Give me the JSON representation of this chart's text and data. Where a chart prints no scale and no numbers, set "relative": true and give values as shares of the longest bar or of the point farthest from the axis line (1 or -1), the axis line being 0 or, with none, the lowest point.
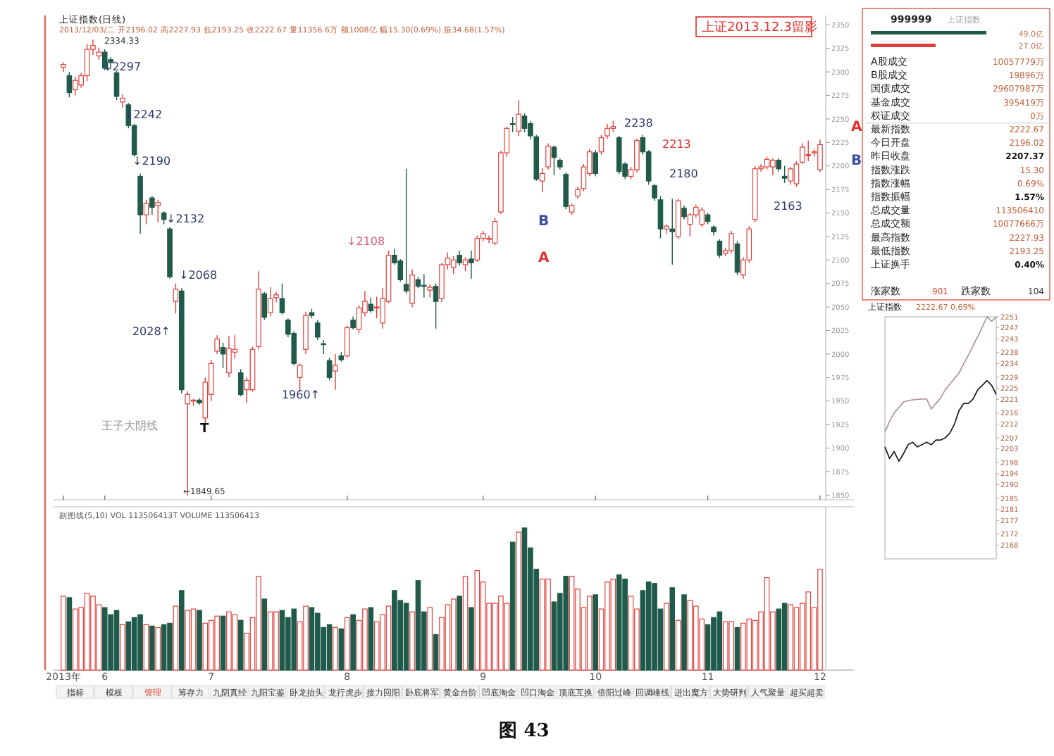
{
  "chart_data": [
    {
      "type": "candlestick",
      "title": "上证指数(日线)",
      "subtitle": "2013/12/03/二 开2196.02 高2227.93 低2193.25 收2222.67 量11356.6万 额1008亿 幅15.30(0.69%) 振34.68(1.57%)",
      "tick_labels": "y",
      "categories": [
        null,
        null,
        null,
        null,
        null,
        null,
        null,
        null,
        null,
        null,
        null,
        null,
        null,
        null,
        null,
        null,
        null,
        null,
        null,
        null,
        null,
        null,
        null,
        null,
        null,
        null,
        null,
        null,
        null,
        null,
        null,
        null,
        null,
        null,
        null,
        null,
        null,
        null,
        null,
        null,
        null,
        null,
        null,
        null,
        null,
        null,
        null,
        null,
        null,
        null,
        null,
        null,
        null,
        null,
        null,
        null,
        null,
        null,
        null,
        null,
        null,
        null,
        null,
        null,
        null,
        null,
        null,
        null,
        null,
        null,
        null,
        null,
        null,
        null,
        null,
        null,
        null,
        null,
        null,
        null,
        null,
        null,
        null,
        null,
        null,
        null,
        null,
        null,
        null,
        null,
        null,
        null,
        null,
        null,
        null,
        null,
        null,
        null,
        null,
        null,
        null,
        null,
        null,
        null,
        null,
        null,
        null,
        null,
        null,
        null,
        null,
        null,
        null,
        null,
        null,
        null,
        null,
        null,
        null,
        null,
        null,
        null,
        null,
        null,
        null,
        null,
        null,
        null,
        null
      ],
      "ylim": [
        1845,
        2360
      ],
      "yticks": [
        1850,
        1875,
        1900,
        1925,
        1950,
        1975,
        2000,
        2025,
        2050,
        2075,
        2100,
        2125,
        2150,
        2175,
        2200,
        2225,
        2250,
        2275,
        2300,
        2325,
        2350
      ],
      "ohlc": [
        [
          2305,
          2310,
          2300,
          2308
        ],
        [
          2296,
          2300,
          2273,
          2278
        ],
        [
          2281,
          2295,
          2275,
          2291
        ],
        [
          2286,
          2299,
          2283,
          2296
        ],
        [
          2296,
          2330,
          2290,
          2324
        ],
        [
          2324,
          2334.33,
          2318,
          2328
        ],
        [
          2317,
          2326,
          2313,
          2321
        ],
        [
          2321,
          2324,
          2302,
          2304
        ],
        [
          2313,
          2316,
          2303,
          2310
        ],
        [
          2299,
          2301,
          2270,
          2274
        ],
        [
          2268,
          2276,
          2262,
          2272
        ],
        [
          2265,
          2267,
          2240,
          2243
        ],
        [
          2243,
          2245,
          2210,
          2212
        ],
        [
          2189,
          2192,
          2128,
          2148
        ],
        [
          2148,
          2164,
          2138,
          2160
        ],
        [
          2166,
          2168,
          2148,
          2156
        ],
        [
          2158,
          2164,
          2140,
          2161
        ],
        [
          2150,
          2152,
          2138,
          2143
        ],
        [
          2133,
          2135,
          2080,
          2082
        ],
        [
          2056,
          2075,
          2043,
          2069
        ],
        [
          2067,
          2070,
          1958,
          1962
        ],
        [
          1947,
          1960,
          1849.65,
          1957
        ],
        [
          1950,
          1952,
          1945,
          1951
        ],
        [
          1951,
          1953,
          1946,
          1948
        ],
        [
          1932,
          1975,
          1925,
          1970
        ],
        [
          1957,
          1994,
          1950,
          1990
        ],
        [
          2003,
          2020,
          2000,
          2016
        ],
        [
          2007,
          2012,
          1985,
          2000
        ],
        [
          1980,
          2019,
          1975,
          2006
        ],
        [
          2002,
          2020,
          1995,
          2005
        ],
        [
          1980,
          1984,
          1955,
          1957
        ],
        [
          1962,
          1975,
          1948,
          1972
        ],
        [
          1962,
          2008,
          1960,
          2005
        ],
        [
          2008,
          2088,
          2005,
          2069
        ],
        [
          2064,
          2066,
          2036,
          2039
        ],
        [
          2044,
          2071,
          2040,
          2059
        ],
        [
          2060,
          2066,
          2055,
          2063
        ],
        [
          2059,
          2075,
          2042,
          2044
        ],
        [
          2036,
          2038,
          2018,
          2021
        ],
        [
          2022,
          2024,
          1988,
          1990
        ],
        [
          1975,
          1990,
          1960,
          1988
        ],
        [
          2005,
          2045,
          2000,
          2041
        ],
        [
          2044,
          2048,
          2038,
          2041
        ],
        [
          2033,
          2036,
          2015,
          2018
        ],
        [
          2011,
          2015,
          2000,
          2010
        ],
        [
          1993,
          1996,
          1972,
          1975
        ],
        [
          1982,
          2000,
          1962,
          1988
        ],
        [
          1998,
          2002,
          1992,
          1994
        ],
        [
          1998,
          2030,
          1996,
          2028
        ],
        [
          2036,
          2040,
          2026,
          2028
        ],
        [
          2026,
          2052,
          2022,
          2049
        ],
        [
          2044,
          2067,
          2040,
          2056
        ],
        [
          2053,
          2060,
          2044,
          2046
        ],
        [
          2050,
          2061,
          2038,
          2050
        ],
        [
          2033,
          2070,
          2027,
          2059
        ],
        [
          2056,
          2110,
          2054,
          2105
        ],
        [
          2105,
          2112,
          2095,
          2097
        ],
        [
          2099,
          2101,
          2077,
          2079
        ],
        [
          2074,
          2197,
          2064,
          2067
        ],
        [
          2054,
          2090,
          2050,
          2084
        ],
        [
          2079,
          2082,
          2070,
          2072
        ],
        [
          2073,
          2085,
          2060,
          2072
        ],
        [
          2068,
          2074,
          2060,
          2071
        ],
        [
          2072,
          2075,
          2027,
          2056
        ],
        [
          2059,
          2097,
          2055,
          2095
        ],
        [
          2095,
          2108,
          2090,
          2102
        ],
        [
          2092,
          2104,
          2085,
          2100
        ],
        [
          2105,
          2110,
          2094,
          2097
        ],
        [
          2095,
          2103,
          2088,
          2100
        ],
        [
          2101,
          2110,
          2080,
          2097
        ],
        [
          2100,
          2126,
          2098,
          2123
        ],
        [
          2123,
          2131,
          2120,
          2128
        ],
        [
          2122,
          2126,
          2118,
          2123
        ],
        [
          2118,
          2145,
          2116,
          2141
        ],
        [
          2151,
          2216,
          2149,
          2214
        ],
        [
          2214,
          2242,
          2210,
          2240
        ],
        [
          2245,
          2252,
          2236,
          2244
        ],
        [
          2237,
          2270,
          2232,
          2255
        ],
        [
          2253,
          2256,
          2236,
          2240
        ],
        [
          2245,
          2248,
          2228,
          2232
        ],
        [
          2231,
          2233,
          2184,
          2186
        ],
        [
          2184,
          2198,
          2172,
          2192
        ],
        [
          2199,
          2224,
          2196,
          2221
        ],
        [
          2220,
          2222,
          2190,
          2209
        ],
        [
          2206,
          2208,
          2196,
          2199
        ],
        [
          2191,
          2193,
          2154,
          2157
        ],
        [
          2151,
          2160,
          2148,
          2158
        ],
        [
          2168,
          2178,
          2165,
          2175
        ],
        [
          2176,
          2202,
          2173,
          2199
        ],
        [
          2192,
          2218,
          2189,
          2215
        ],
        [
          2214,
          2217,
          2189,
          2192
        ],
        [
          2215,
          2233,
          2212,
          2230
        ],
        [
          2232,
          2245,
          2229,
          2240
        ],
        [
          2240,
          2248,
          2236,
          2242
        ],
        [
          2230,
          2232,
          2191,
          2194
        ],
        [
          2202,
          2204,
          2186,
          2189
        ],
        [
          2189,
          2199,
          2186,
          2196
        ],
        [
          2196,
          2229,
          2193,
          2227
        ],
        [
          2230,
          2233,
          2212,
          2215
        ],
        [
          2215,
          2217,
          2180,
          2184
        ],
        [
          2179,
          2181,
          2163,
          2166
        ],
        [
          2164,
          2168,
          2123,
          2133
        ],
        [
          2133,
          2138,
          2128,
          2136
        ],
        [
          2133,
          2165,
          2095,
          2130
        ],
        [
          2125,
          2165,
          2122,
          2163
        ],
        [
          2155,
          2158,
          2143,
          2146
        ],
        [
          2138,
          2150,
          2125,
          2148
        ],
        [
          2148,
          2159,
          2145,
          2156
        ],
        [
          2138,
          2156,
          2135,
          2153
        ],
        [
          2148,
          2150,
          2138,
          2141
        ],
        [
          2135,
          2137,
          2126,
          2130
        ],
        [
          2120,
          2122,
          2102,
          2105
        ],
        [
          2107,
          2113,
          2104,
          2110
        ],
        [
          2110,
          2131,
          2107,
          2128
        ],
        [
          2117,
          2120,
          2084,
          2087
        ],
        [
          2084,
          2103,
          2080,
          2100
        ],
        [
          2100,
          2136,
          2097,
          2133
        ],
        [
          2143,
          2200,
          2140,
          2197
        ],
        [
          2197,
          2202,
          2194,
          2199
        ],
        [
          2199,
          2210,
          2196,
          2207
        ],
        [
          2199,
          2208,
          2190,
          2206
        ],
        [
          2206,
          2208,
          2194,
          2197
        ],
        [
          2189,
          2200,
          2182,
          2187
        ],
        [
          2184,
          2199,
          2180,
          2197
        ],
        [
          2181,
          2205,
          2178,
          2202
        ],
        [
          2204,
          2224,
          2202,
          2220
        ],
        [
          2212,
          2227,
          2205,
          2212
        ],
        [
          2214,
          2218,
          2210,
          2215
        ],
        [
          2196.02,
          2227.93,
          2193.25,
          2222.67
        ]
      ],
      "annotations": [
        "2334.33",
        "↓2297",
        "↓2242",
        "↓2190",
        "↓2132",
        "↓2068",
        "2028↑",
        "←1849.65",
        "王子大阴线",
        "T",
        "1960↑",
        "↓2108",
        "B",
        "A",
        "2238",
        "2213",
        "2180",
        "2163",
        "A",
        "B",
        "上证2013.12.3留影",
        "图 43"
      ]
    },
    {
      "type": "bar",
      "title": "副图线(5,10) VOL 113506413T VOLUME 113506413",
      "relative": true,
      "categories": [
        "2013年",
        null,
        null,
        null,
        null,
        null,
        null,
        "6",
        null,
        null,
        null,
        null,
        null,
        null,
        null,
        null,
        null,
        null,
        null,
        null,
        null,
        null,
        null,
        null,
        null,
        "7",
        null,
        null,
        null,
        null,
        null,
        null,
        null,
        null,
        null,
        null,
        null,
        null,
        null,
        null,
        null,
        null,
        null,
        null,
        null,
        null,
        null,
        null,
        "8",
        null,
        null,
        null,
        null,
        null,
        null,
        null,
        null,
        null,
        null,
        null,
        null,
        null,
        null,
        null,
        null,
        null,
        null,
        null,
        null,
        null,
        null,
        "9",
        null,
        null,
        null,
        null,
        null,
        null,
        null,
        null,
        null,
        null,
        null,
        null,
        null,
        null,
        null,
        null,
        null,
        null,
        "10",
        null,
        null,
        null,
        null,
        null,
        null,
        null,
        null,
        null,
        null,
        null,
        null,
        null,
        null,
        null,
        null,
        null,
        null,
        "11",
        null,
        null,
        null,
        null,
        null,
        null,
        null,
        null,
        null,
        null,
        null,
        null,
        null,
        null,
        null,
        null,
        null,
        null,
        "12"
      ],
      "values": [
        0.52,
        0.51,
        0.43,
        0.44,
        0.54,
        0.52,
        0.46,
        0.44,
        0.39,
        0.42,
        0.32,
        0.34,
        0.37,
        0.39,
        0.32,
        0.31,
        0.3,
        0.32,
        0.33,
        0.45,
        0.56,
        0.42,
        0.43,
        0.42,
        0.33,
        0.35,
        0.38,
        0.38,
        0.41,
        0.39,
        0.35,
        0.26,
        0.37,
        0.66,
        0.5,
        0.41,
        0.41,
        0.42,
        0.37,
        0.43,
        0.34,
        0.45,
        0.44,
        0.4,
        0.3,
        0.32,
        0.3,
        0.29,
        0.37,
        0.39,
        0.35,
        0.43,
        0.44,
        0.34,
        0.39,
        0.45,
        0.56,
        0.49,
        0.47,
        0.41,
        0.63,
        0.41,
        0.44,
        0.25,
        0.37,
        0.46,
        0.5,
        0.52,
        0.66,
        0.44,
        0.7,
        0.62,
        0.47,
        0.47,
        0.52,
        0.47,
        0.9,
        0.97,
        1.0,
        0.86,
        0.71,
        0.64,
        0.64,
        0.48,
        0.54,
        0.66,
        0.66,
        0.57,
        0.44,
        0.52,
        0.53,
        0.43,
        0.62,
        0.64,
        0.67,
        0.64,
        0.52,
        0.43,
        0.56,
        0.62,
        0.61,
        0.43,
        0.47,
        0.58,
        0.35,
        0.53,
        0.49,
        0.45,
        0.36,
        0.32,
        0.37,
        0.41,
        0.34,
        0.34,
        0.3,
        0.33,
        0.36,
        0.35,
        0.41,
        0.65,
        0.41,
        0.43,
        0.47,
        0.46,
        0.44,
        0.47,
        0.55,
        0.44,
        0.71
      ],
      "annotations": [
        "指标",
        "模板",
        "管理",
        "筹存力",
        "九阴真经",
        "九阳宝鉴",
        "卧龙抬头",
        "龙行虎步",
        "接力回阳",
        "卧底将军",
        "黄金台阶",
        "凹底淘金",
        "凹口淘金",
        "顶底互换",
        "倍阳过峰",
        "回调峰线",
        "进出魔方",
        "大势研判",
        "人气聚量",
        "超买超卖"
      ]
    },
    {
      "type": "other",
      "title": "999999",
      "subtitle": "上证指数",
      "categories": [
        "A股成交",
        "B股成交",
        "国债成交",
        "基金成交",
        "权证成交",
        "最新指数",
        "今日开盘",
        "昨日收盘",
        "指数涨跌",
        "指数涨幅",
        "指数振幅",
        "总成交量",
        "总成交额",
        "最高指数",
        "最低指数",
        "上证换手",
        "涨家数",
        "跌家数"
      ],
      "value_labels": [
        "10057779万",
        "19896万",
        "29607987万",
        "395419万",
        "0万",
        "2222.67",
        "2196.02",
        "2207.37",
        "15.30",
        "0.69%",
        "1.57%",
        "113506410",
        "10077666万",
        "2227.93",
        "2193.25",
        "0.40%",
        "901",
        "104"
      ],
      "annotations": [
        "49.0亿",
        "27.0亿"
      ]
    },
    {
      "type": "line",
      "title": "上证指数",
      "subtitle": "2222.67 0.69%",
      "tick_labels": "y",
      "ylim": [
        2163,
        2251
      ],
      "categories": [
        null,
        null,
        null,
        null,
        null,
        null,
        null,
        null,
        null,
        null,
        null,
        null,
        null,
        null,
        null,
        null,
        null,
        null,
        null,
        null,
        null,
        null,
        null,
        null,
        null
      ],
      "yticks": [
        2251,
        2247,
        2243,
        2238,
        2234,
        2229,
        2225,
        2221,
        2216,
        2212,
        2207,
        2203,
        2198,
        2194,
        2190,
        2185,
        2181,
        2177,
        2172,
        2168
      ],
      "series": [
        {
          "color": "#b09a9a",
          "values": [
            2209,
            2213,
            2216,
            2218,
            2220,
            2220.5,
            2220.8,
            2221,
            2221.1,
            2221.1,
            2217.5,
            2219.5,
            2221.5,
            2224.5,
            2226.5,
            2228.6,
            2230.6,
            2234,
            2237,
            2240.5,
            2243.7,
            2247.3,
            2251,
            2249.3,
            2251
          ]
        },
        {
          "color": "#222222",
          "values": [
            2203.7,
            2199.5,
            2202.0,
            2198.5,
            2201.2,
            2204.5,
            2205.4,
            2203.7,
            2204.5,
            2205.4,
            2204.5,
            2206.2,
            2206.2,
            2207.0,
            2208.7,
            2212.0,
            2217.0,
            2219.5,
            2219.5,
            2221.1,
            2224.4,
            2226.1,
            2227.8,
            2226.1,
            2222.8
          ]
        }
      ]
    }
  ]
}
